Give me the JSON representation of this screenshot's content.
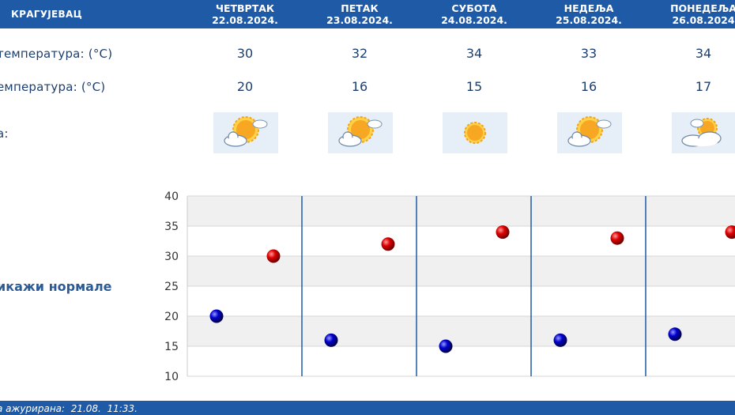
{
  "header": {
    "city": "КРАГУЈЕВАЦ",
    "days": [
      {
        "name": "ЧЕТВРТАК",
        "date": "22.08.2024."
      },
      {
        "name": "ПЕТАК",
        "date": "23.08.2024."
      },
      {
        "name": "СУБОТА",
        "date": "24.08.2024."
      },
      {
        "name": "НЕДЕЉА",
        "date": "25.08.2024."
      },
      {
        "name": "ПОНЕДЕЉА",
        "date": "26.08.2024"
      }
    ]
  },
  "rows": {
    "max_label": "температура: (°C)",
    "min_label": "емпература: (°C)",
    "weather_label": "а:",
    "max_values": [
      "30",
      "32",
      "34",
      "33",
      "34"
    ],
    "min_values": [
      "20",
      "16",
      "15",
      "16",
      "17"
    ]
  },
  "weather_icons": [
    "sun-cloud-icon",
    "sun-cloud-icon",
    "sun-icon",
    "sun-cloud-icon",
    "cloud-sun-icon"
  ],
  "normals_link": "икажи нормале",
  "footer": {
    "updated": "а ажурирана:  21.08.  11:33."
  },
  "colors": {
    "header_blue": "#1f5aa6",
    "max_dot": "#cc0000",
    "min_dot": "#0000bb",
    "day_separator": "#1f5aa6"
  },
  "chart_data": {
    "type": "scatter",
    "categories": [
      "22.08.2024.",
      "23.08.2024.",
      "24.08.2024.",
      "25.08.2024.",
      "26.08.2024"
    ],
    "series": [
      {
        "values": [
          30,
          32,
          34,
          33,
          34
        ],
        "color": "#cc0000"
      },
      {
        "values": [
          20,
          16,
          15,
          16,
          17
        ],
        "color": "#0000bb"
      }
    ],
    "ylim": [
      10,
      40
    ],
    "yticks": [
      "10",
      "15",
      "20",
      "25",
      "30",
      "35",
      "40"
    ],
    "grid": true,
    "grid_band_fill": "#f0f0f0"
  }
}
